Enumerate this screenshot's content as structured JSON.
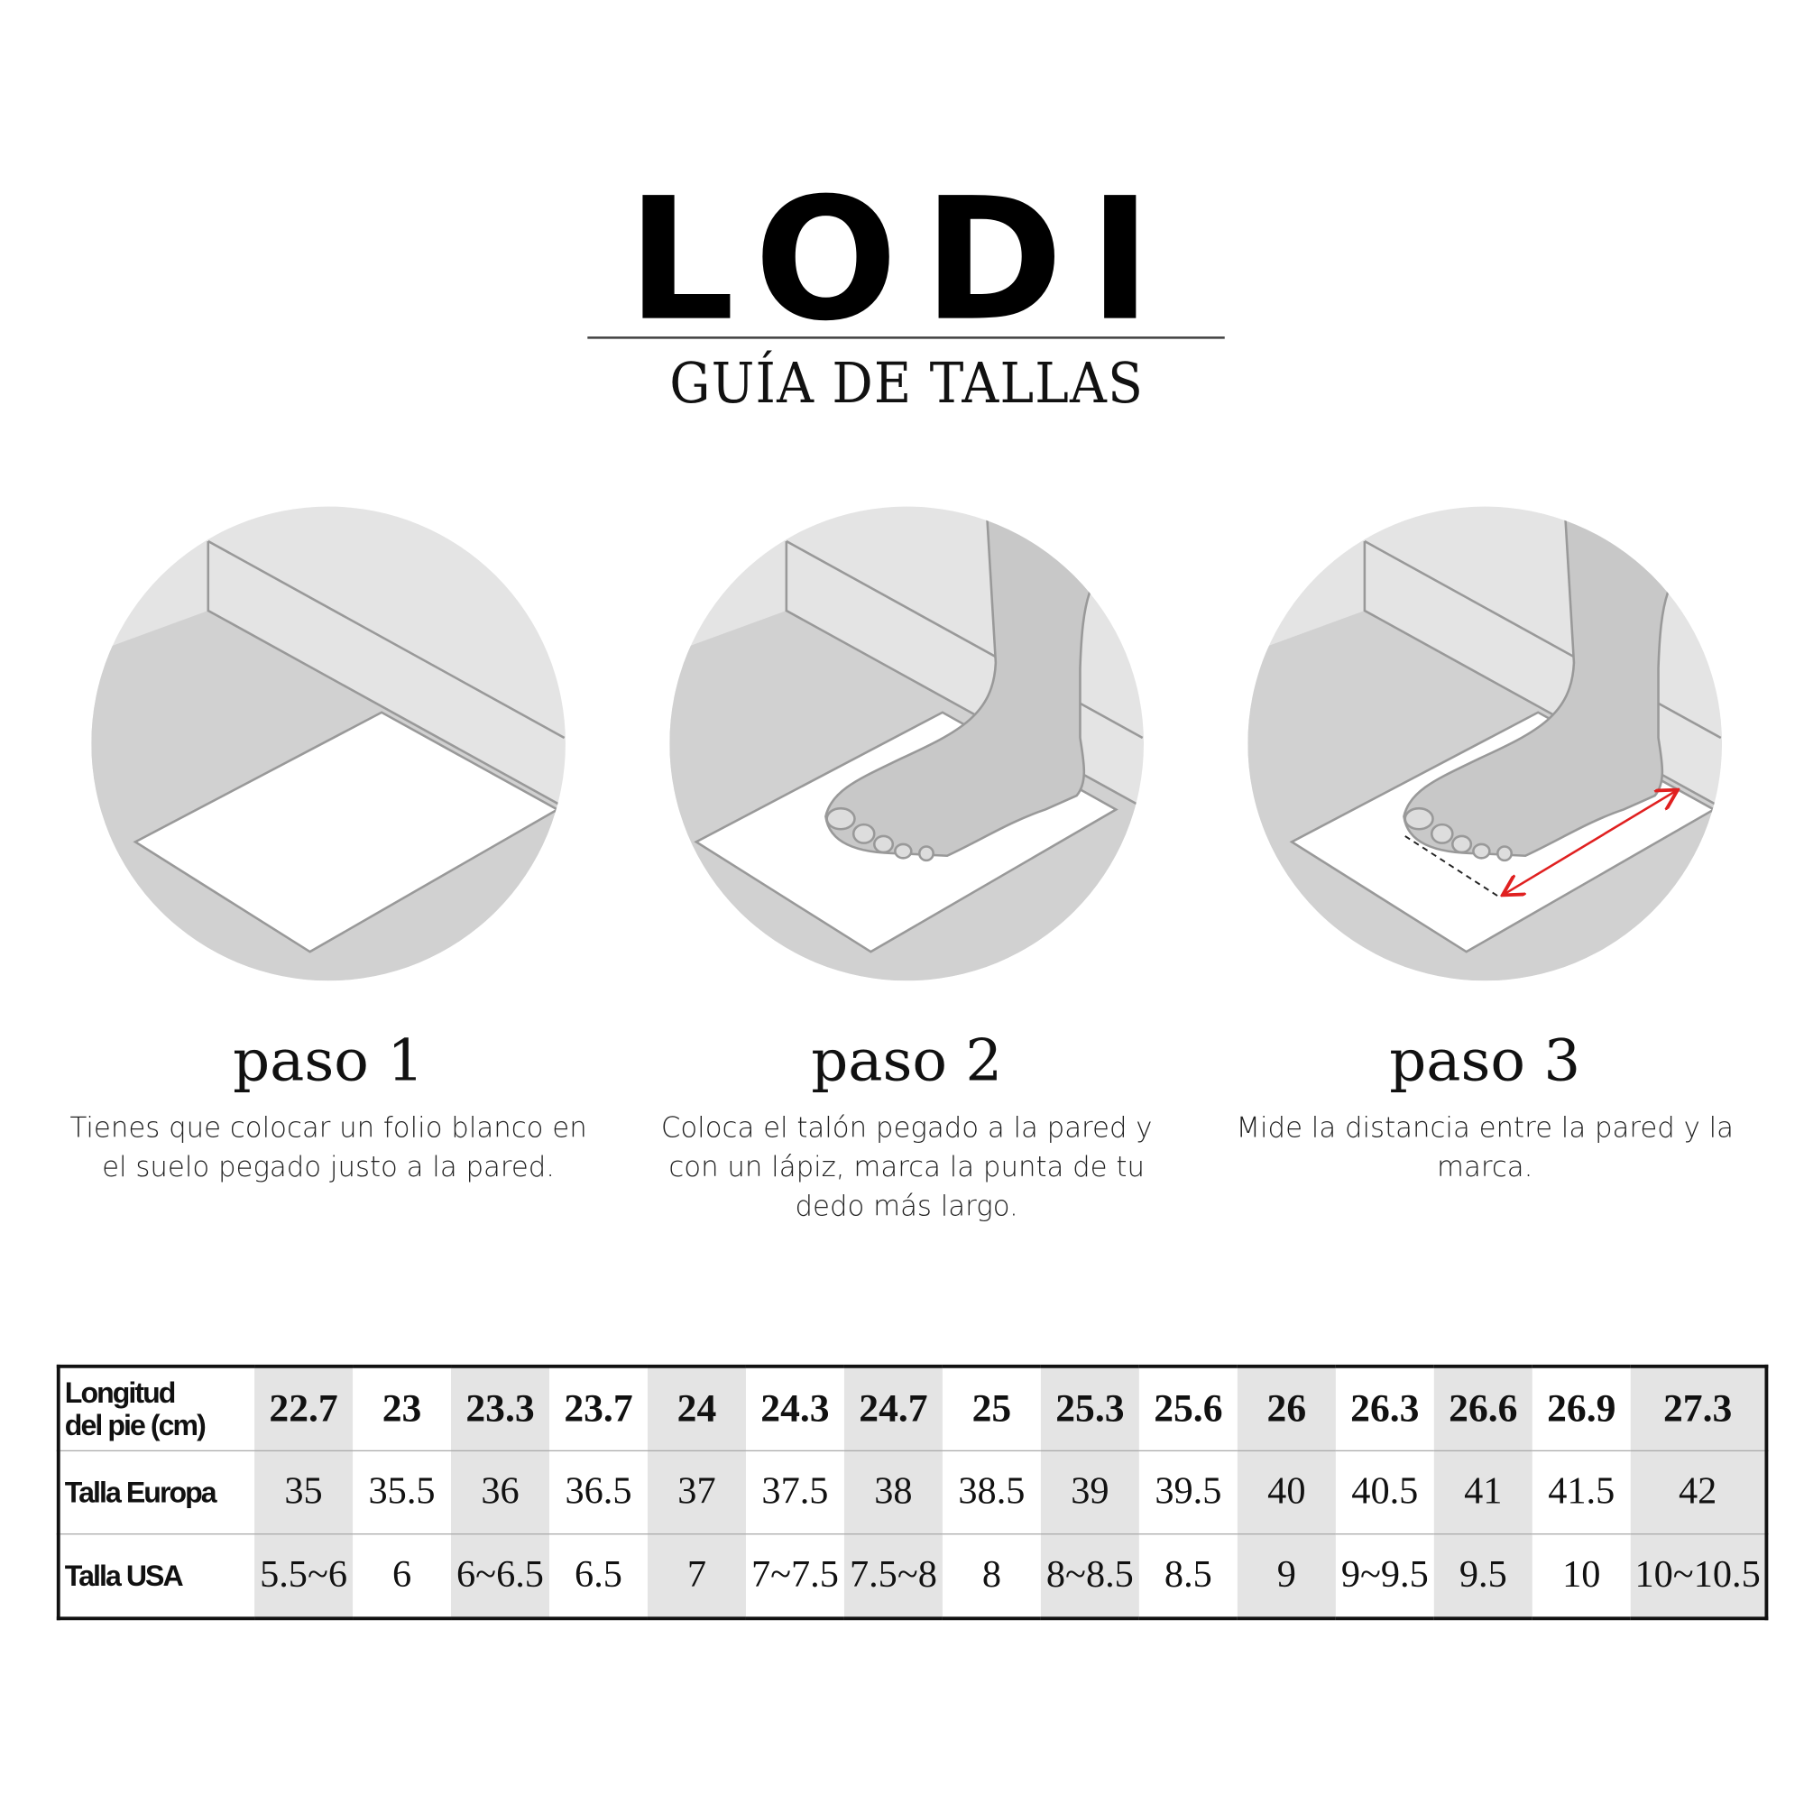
{
  "brand": "LODI",
  "subtitle": "GUÍA DE TALLAS",
  "steps": [
    {
      "title": "paso 1",
      "description": "Tienes que colocar un folio blanco en el suelo pegado justo a la pared."
    },
    {
      "title": "paso 2",
      "description": "Coloca el talón pegado a la pared y con un lápiz, marca la punta de tu dedo más largo."
    },
    {
      "title": "paso 3",
      "description": "Mide la distancia entre la pared y la marca."
    }
  ],
  "colors": {
    "arrow": "#e02020",
    "shade": "#e4e4e4"
  },
  "table": {
    "rows": [
      {
        "label": "Longitud del pie (cm)",
        "values": [
          "22.7",
          "23",
          "23.3",
          "23.7",
          "24",
          "24.3",
          "24.7",
          "25",
          "25.3",
          "25.6",
          "26",
          "26.3",
          "26.6",
          "26.9",
          "27.3"
        ]
      },
      {
        "label": "Talla Europa",
        "values": [
          "35",
          "35.5",
          "36",
          "36.5",
          "37",
          "37.5",
          "38",
          "38.5",
          "39",
          "39.5",
          "40",
          "40.5",
          "41",
          "41.5",
          "42"
        ]
      },
      {
        "label": "Talla USA",
        "values": [
          "5.5~6",
          "6",
          "6~6.5",
          "6.5",
          "7",
          "7~7.5",
          "7.5~8",
          "8",
          "8~8.5",
          "8.5",
          "9",
          "9~9.5",
          "9.5",
          "10",
          "10~10.5"
        ]
      }
    ]
  }
}
